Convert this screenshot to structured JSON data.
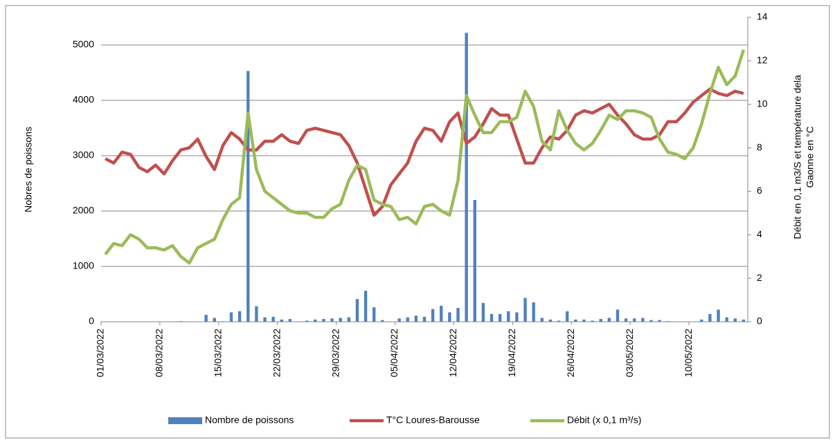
{
  "chart_data": {
    "type": "combo",
    "categories": [
      "01/03/2022",
      null,
      null,
      null,
      null,
      null,
      null,
      "08/03/2022",
      null,
      null,
      null,
      null,
      null,
      null,
      "15/03/2022",
      null,
      null,
      null,
      null,
      null,
      null,
      "22/03/2022",
      null,
      null,
      null,
      null,
      null,
      null,
      "29/03/2022",
      null,
      null,
      null,
      null,
      null,
      null,
      "05/04/2022",
      null,
      null,
      null,
      null,
      null,
      null,
      "12/04/2022",
      null,
      null,
      null,
      null,
      null,
      null,
      "19/04/2022",
      null,
      null,
      null,
      null,
      null,
      null,
      "26/04/2022",
      null,
      null,
      null,
      null,
      null,
      null,
      "03/05/2022",
      null,
      null,
      null,
      null,
      null,
      null,
      "10/05/2022",
      null,
      null,
      null,
      null,
      null,
      null
    ],
    "y_label": "Nobres de poissons",
    "y2_label": [
      "Débit en 0,1 m3/S et température dela",
      "Gaonne en °C"
    ],
    "ylim": [
      0,
      5500
    ],
    "yticks": [
      0,
      1000,
      2000,
      3000,
      4000,
      5000
    ],
    "y2lim": [
      0,
      14
    ],
    "y2ticks": [
      0,
      2,
      4,
      6,
      8,
      10,
      12,
      14
    ],
    "grid": true,
    "legend": "bottom",
    "series": [
      {
        "name": "Nombre de poissons",
        "type": "bar",
        "color": "#4f81bd",
        "values": [
          0,
          0,
          0,
          0,
          0,
          0,
          0,
          0,
          0,
          10,
          0,
          0,
          125,
          70,
          10,
          170,
          190,
          4530,
          280,
          80,
          90,
          40,
          50,
          0,
          20,
          40,
          50,
          60,
          70,
          80,
          410,
          560,
          260,
          30,
          0,
          60,
          80,
          110,
          90,
          230,
          290,
          170,
          250,
          5220,
          2200,
          340,
          140,
          140,
          190,
          170,
          430,
          350,
          70,
          40,
          20,
          190,
          40,
          40,
          20,
          50,
          70,
          220,
          60,
          60,
          70,
          30,
          30,
          10,
          0,
          0,
          0,
          40,
          140,
          220,
          80,
          60,
          40
        ]
      },
      {
        "name": "T°C Loures-Barousse",
        "type": "line",
        "axis": "y2",
        "color": "#c0504d",
        "values": [
          7.5,
          7.3,
          7.8,
          7.7,
          7.1,
          6.9,
          7.2,
          6.8,
          7.4,
          7.9,
          8.0,
          8.4,
          7.6,
          7.0,
          8.1,
          8.7,
          8.4,
          7.9,
          7.9,
          8.3,
          8.3,
          8.6,
          8.3,
          8.2,
          8.8,
          8.9,
          8.8,
          8.7,
          8.6,
          8.1,
          7.3,
          6.1,
          4.9,
          5.3,
          6.3,
          6.8,
          7.3,
          8.3,
          8.9,
          8.8,
          8.3,
          9.2,
          9.6,
          8.2,
          8.5,
          9.1,
          9.8,
          9.5,
          9.5,
          8.4,
          7.3,
          7.3,
          8.0,
          8.5,
          8.4,
          8.8,
          9.5,
          9.7,
          9.6,
          9.8,
          10.0,
          9.5,
          9.1,
          8.6,
          8.4,
          8.4,
          8.6,
          9.2,
          9.2,
          9.6,
          10.1,
          10.4,
          10.7,
          10.5,
          10.4,
          10.6,
          10.5
        ]
      },
      {
        "name": "Débit (x 0,1 m³/s)",
        "type": "line",
        "axis": "y2",
        "color": "#9bbb59",
        "values": [
          3.1,
          3.6,
          3.5,
          4.0,
          3.8,
          3.4,
          3.4,
          3.3,
          3.5,
          3.0,
          2.7,
          3.4,
          3.6,
          3.8,
          4.7,
          5.4,
          5.7,
          9.6,
          7.0,
          6.0,
          5.7,
          5.4,
          5.1,
          5.0,
          5.0,
          4.8,
          4.8,
          5.2,
          5.4,
          6.5,
          7.2,
          7.0,
          5.6,
          5.4,
          5.3,
          4.7,
          4.8,
          4.5,
          5.3,
          5.4,
          5.1,
          4.9,
          6.5,
          10.4,
          9.5,
          8.7,
          8.7,
          9.2,
          9.2,
          9.4,
          10.6,
          9.9,
          8.3,
          7.9,
          9.7,
          8.8,
          8.2,
          7.9,
          8.2,
          8.8,
          9.5,
          9.3,
          9.7,
          9.7,
          9.6,
          9.4,
          8.4,
          7.8,
          7.7,
          7.5,
          8.0,
          9.1,
          10.5,
          11.7,
          10.9,
          11.3,
          12.5
        ]
      }
    ]
  }
}
